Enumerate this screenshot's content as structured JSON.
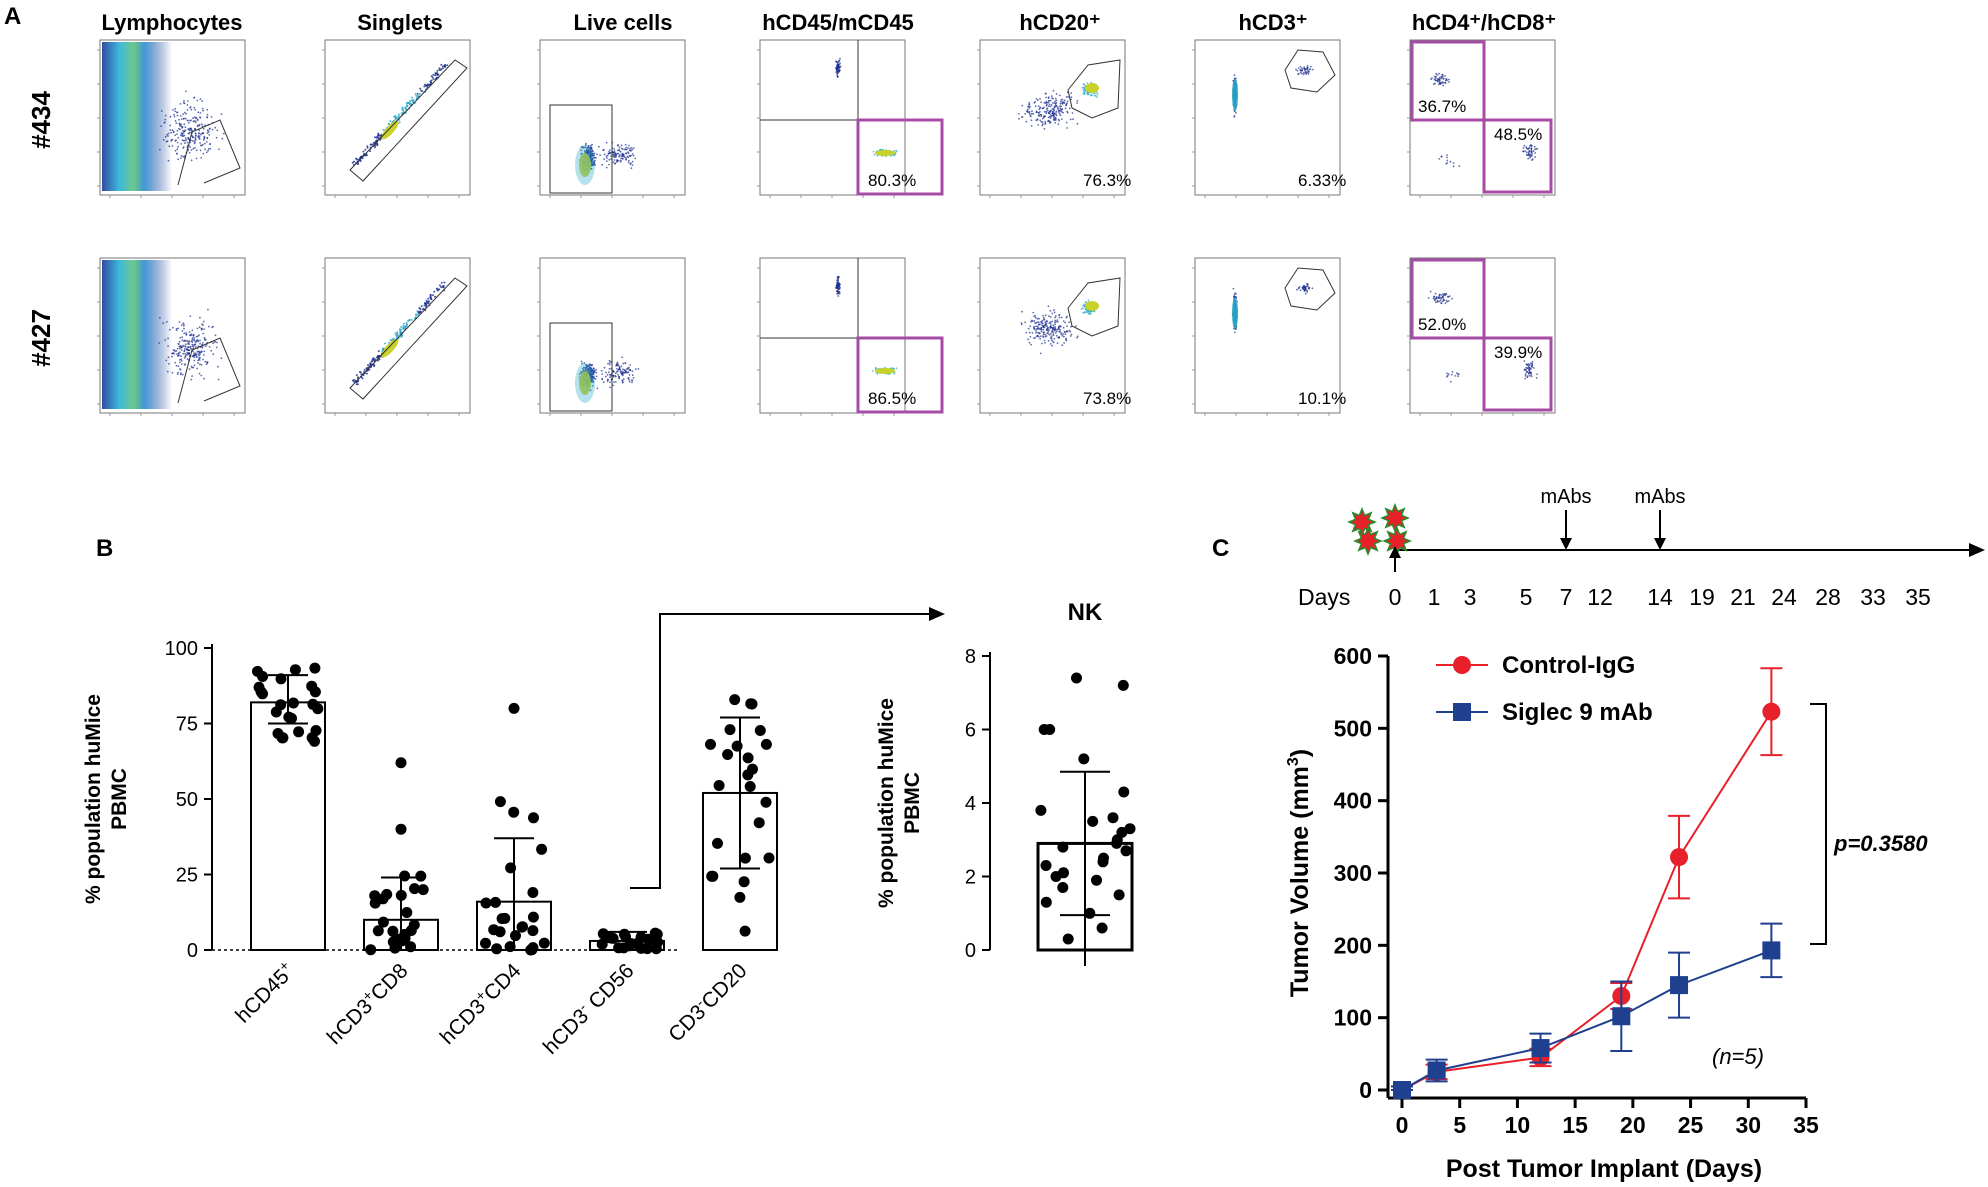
{
  "panels": {
    "A": "A",
    "B": "B",
    "C": "C"
  },
  "panel_a": {
    "columns": [
      "Lymphocytes",
      "Singlets",
      "Live cells",
      "hCD45/mCD45",
      "hCD20⁺",
      "hCD3⁺",
      "hCD4⁺/hCD8⁺"
    ],
    "rows": [
      {
        "id": "#434",
        "values": {
          "hcd45": "80.3%",
          "hcd20": "76.3%",
          "hcd3": "6.33%",
          "cd4": "36.7%",
          "cd8": "48.5%"
        }
      },
      {
        "id": "#427",
        "values": {
          "hcd45": "86.5%",
          "hcd20": "73.8%",
          "hcd3": "10.1%",
          "cd4": "52.0%",
          "cd8": "39.9%"
        }
      }
    ]
  },
  "colors": {
    "gate_highlight": "#a64ca6",
    "control": "#e8202a",
    "siglec": "#1f3f8f",
    "dot_low": "#1c2f8f",
    "dot_mid": "#2aa8c8",
    "dot_high": "#c8d22a"
  },
  "chart_data": [
    {
      "type": "bar",
      "id": "B-left",
      "title": "",
      "ylabel": "% population huMice PBMC",
      "ylim": [
        0,
        100
      ],
      "yticks": [
        0,
        25,
        50,
        75,
        100
      ],
      "categories": [
        "hCD45⁺",
        "hCD3⁺CD8",
        "hCD3⁺CD4",
        "hCD3⁻ CD56",
        "CD3⁻CD20"
      ],
      "category_labels": [
        {
          "base": "hCD45",
          "sup": "+",
          "rest": ""
        },
        {
          "base": "hCD3",
          "sup": "+",
          "rest": "CD8"
        },
        {
          "base": "hCD3",
          "sup": "+",
          "rest": "CD4"
        },
        {
          "base": "hCD3",
          "sup": "-",
          "rest": " CD56"
        },
        {
          "base": "CD3",
          "sup": "-",
          "rest": "CD20"
        }
      ],
      "values": [
        82,
        10,
        16,
        3,
        52
      ],
      "error_high": [
        91,
        24,
        37,
        6,
        77
      ],
      "error_low": [
        75,
        0,
        0,
        0,
        27
      ]
    },
    {
      "type": "bar",
      "id": "B-right",
      "title": "NK",
      "ylabel": "% population huMice PBMC",
      "ylim": [
        0,
        8
      ],
      "yticks": [
        0,
        2,
        4,
        6,
        8
      ],
      "categories": [
        "NK"
      ],
      "values": [
        2.9
      ],
      "error_high": [
        4.85
      ],
      "error_low": [
        0.95
      ]
    },
    {
      "type": "line",
      "id": "C",
      "title": "",
      "xlabel": "Post Tumor Implant (Days)",
      "ylabel": "Tumor Volume (mm³)",
      "ylabel_base": "Tumor Volume (mm",
      "ylabel_sup": "3",
      "ylabel_tail": ")",
      "xlim": [
        0,
        35
      ],
      "ylim": [
        0,
        600
      ],
      "xticks": [
        0,
        5,
        10,
        15,
        20,
        25,
        30,
        35
      ],
      "yticks": [
        0,
        100,
        200,
        300,
        400,
        500,
        600
      ],
      "series": [
        {
          "name": "Control-IgG",
          "marker": "circle",
          "x": [
            0,
            3,
            12,
            19,
            24,
            32
          ],
          "y": [
            0,
            25,
            45,
            130,
            322,
            523
          ],
          "err": [
            5,
            10,
            12,
            18,
            57,
            60
          ]
        },
        {
          "name": "Siglec 9 mAb",
          "marker": "square",
          "x": [
            0,
            3,
            12,
            19,
            24,
            32
          ],
          "y": [
            0,
            27,
            58,
            102,
            145,
            193
          ],
          "err": [
            5,
            15,
            20,
            48,
            45,
            37
          ]
        }
      ],
      "annotations": {
        "p_value": "p=0.3580",
        "n": "(n=5)"
      }
    }
  ],
  "timeline": {
    "label": "Days",
    "days": [
      "0",
      "1",
      "3",
      "5",
      "7",
      "12",
      "14",
      "19",
      "21",
      "24",
      "28",
      "33",
      "35"
    ],
    "events": [
      "mAbs",
      "mAbs"
    ]
  }
}
